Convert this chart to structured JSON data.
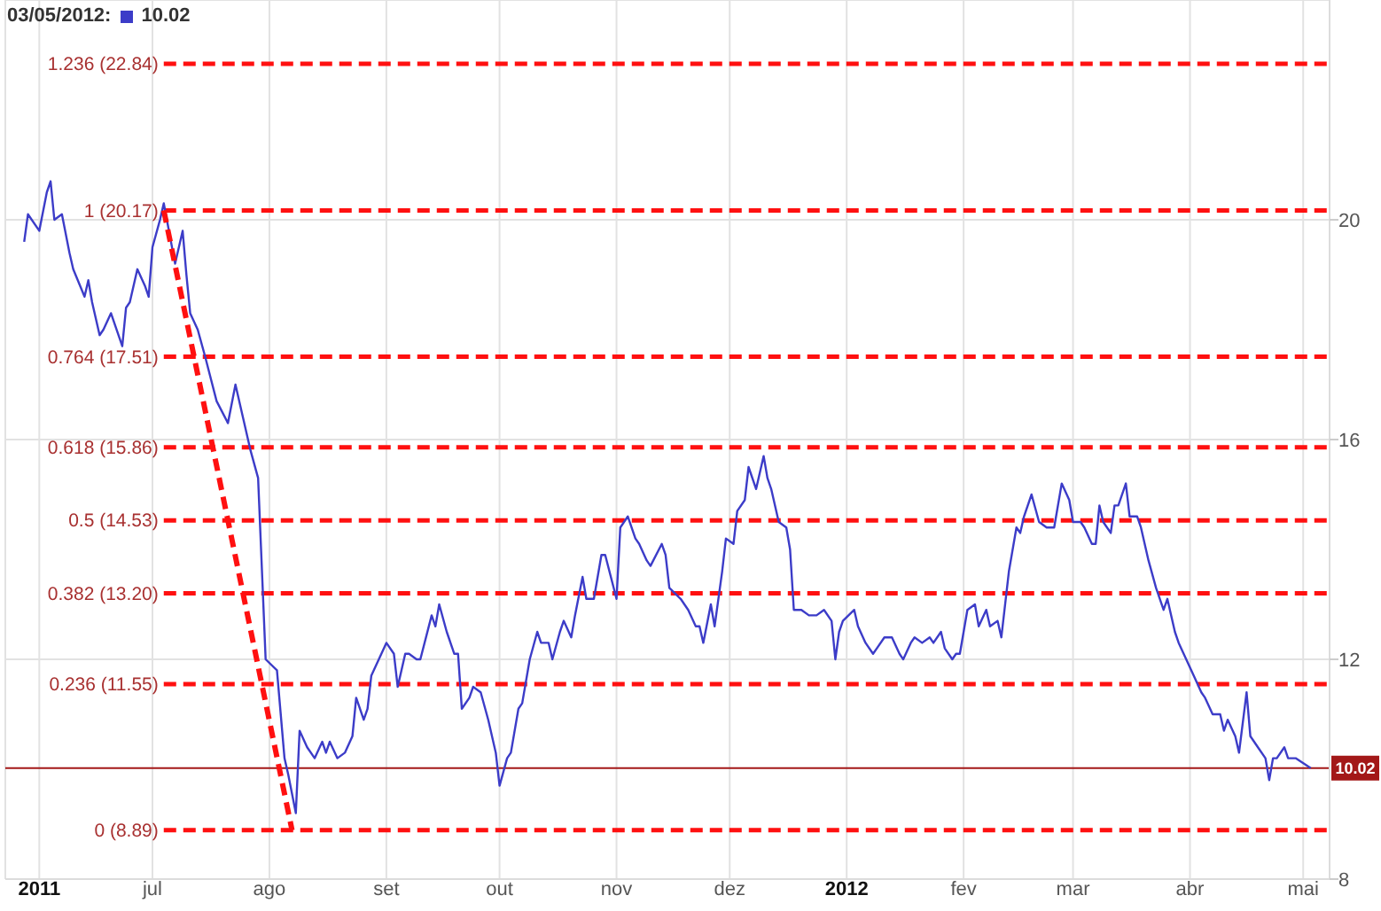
{
  "chart_data": {
    "type": "line",
    "title": "03/05/2012:",
    "annotations": [
      "10.02"
    ],
    "x": [
      "2011-05-28",
      "2011-05-29",
      "2011-06-01",
      "2011-06-03",
      "2011-06-04",
      "2011-06-05",
      "2011-06-07",
      "2011-06-09",
      "2011-06-10",
      "2011-06-13",
      "2011-06-14",
      "2011-06-15",
      "2011-06-17",
      "2011-06-18",
      "2011-06-20",
      "2011-06-23",
      "2011-06-24",
      "2011-06-25",
      "2011-06-27",
      "2011-06-29",
      "2011-06-30",
      "2011-07-01",
      "2011-07-03",
      "2011-07-04",
      "2011-07-07",
      "2011-07-09",
      "2011-07-10",
      "2011-07-11",
      "2011-07-13",
      "2011-07-15",
      "2011-07-18",
      "2011-07-21",
      "2011-07-23",
      "2011-07-25",
      "2011-07-27",
      "2011-07-29",
      "2011-07-31",
      "2011-08-03",
      "2011-08-05",
      "2011-08-06",
      "2011-08-08",
      "2011-08-09",
      "2011-08-11",
      "2011-08-13",
      "2011-08-15",
      "2011-08-16",
      "2011-08-17",
      "2011-08-19",
      "2011-08-21",
      "2011-08-23",
      "2011-08-24",
      "2011-08-26",
      "2011-08-27",
      "2011-08-28",
      "2011-08-30",
      "2011-09-01",
      "2011-09-03",
      "2011-09-04",
      "2011-09-06",
      "2011-09-07",
      "2011-09-09",
      "2011-09-10",
      "2011-09-13",
      "2011-09-14",
      "2011-09-15",
      "2011-09-17",
      "2011-09-19",
      "2011-09-20",
      "2011-09-21",
      "2011-09-23",
      "2011-09-24",
      "2011-09-26",
      "2011-09-28",
      "2011-09-30",
      "2011-10-01",
      "2011-10-03",
      "2011-10-04",
      "2011-10-06",
      "2011-10-07",
      "2011-10-09",
      "2011-10-11",
      "2011-10-12",
      "2011-10-14",
      "2011-10-15",
      "2011-10-17",
      "2011-10-18",
      "2011-10-20",
      "2011-10-21",
      "2011-10-23",
      "2011-10-24",
      "2011-10-26",
      "2011-10-28",
      "2011-10-29",
      "2011-11-01",
      "2011-11-02",
      "2011-11-04",
      "2011-11-06",
      "2011-11-07",
      "2011-11-09",
      "2011-11-10",
      "2011-11-13",
      "2011-11-14",
      "2011-11-15",
      "2011-11-18",
      "2011-11-20",
      "2011-11-22",
      "2011-11-23",
      "2011-11-24",
      "2011-11-26",
      "2011-11-27",
      "2011-11-29",
      "2011-11-30",
      "2011-12-02",
      "2011-12-03",
      "2011-12-05",
      "2011-12-06",
      "2011-12-08",
      "2011-12-10",
      "2011-12-11",
      "2011-12-12",
      "2011-12-14",
      "2011-12-16",
      "2011-12-17",
      "2011-12-18",
      "2011-12-20",
      "2011-12-22",
      "2011-12-24",
      "2011-12-26",
      "2011-12-28",
      "2011-12-29",
      "2011-12-30",
      "2011-12-31",
      "2012-01-03",
      "2012-01-04",
      "2012-01-06",
      "2012-01-08",
      "2012-01-09",
      "2012-01-11",
      "2012-01-13",
      "2012-01-15",
      "2012-01-16",
      "2012-01-18",
      "2012-01-19",
      "2012-01-21",
      "2012-01-23",
      "2012-01-24",
      "2012-01-26",
      "2012-01-27",
      "2012-01-29",
      "2012-01-30",
      "2012-01-31",
      "2012-02-02",
      "2012-02-04",
      "2012-02-05",
      "2012-02-07",
      "2012-02-08",
      "2012-02-10",
      "2012-02-11",
      "2012-02-13",
      "2012-02-15",
      "2012-02-16",
      "2012-02-17",
      "2012-02-19",
      "2012-02-21",
      "2012-02-23",
      "2012-02-25",
      "2012-02-27",
      "2012-02-29",
      "2012-03-01",
      "2012-03-03",
      "2012-03-04",
      "2012-03-06",
      "2012-03-07",
      "2012-03-08",
      "2012-03-09",
      "2012-03-11",
      "2012-03-12",
      "2012-03-13",
      "2012-03-15",
      "2012-03-16",
      "2012-03-18",
      "2012-03-19",
      "2012-03-21",
      "2012-03-23",
      "2012-03-25",
      "2012-03-26",
      "2012-03-28",
      "2012-03-29",
      "2012-03-31",
      "2012-04-02",
      "2012-04-04",
      "2012-04-05",
      "2012-04-07",
      "2012-04-09",
      "2012-04-10",
      "2012-04-11",
      "2012-04-13",
      "2012-04-14",
      "2012-04-16",
      "2012-04-17",
      "2012-04-19",
      "2012-04-21",
      "2012-04-22",
      "2012-04-23",
      "2012-04-24",
      "2012-04-26",
      "2012-04-27",
      "2012-04-29",
      "2012-05-03"
    ],
    "series": [
      {
        "color": "#3c3cc8",
        "values": [
          19.6,
          20.1,
          19.8,
          20.5,
          20.7,
          20.0,
          20.1,
          19.4,
          19.1,
          18.6,
          18.9,
          18.5,
          17.9,
          18.0,
          18.3,
          17.7,
          18.4,
          18.5,
          19.1,
          18.8,
          18.6,
          19.5,
          20.0,
          20.3,
          19.2,
          19.8,
          19.0,
          18.3,
          18.0,
          17.5,
          16.7,
          16.3,
          17.0,
          16.4,
          15.8,
          15.3,
          12.0,
          11.8,
          10.2,
          9.9,
          9.2,
          10.7,
          10.4,
          10.2,
          10.5,
          10.3,
          10.5,
          10.2,
          10.3,
          10.6,
          11.3,
          10.9,
          11.1,
          11.7,
          12.0,
          12.3,
          12.1,
          11.5,
          12.1,
          12.1,
          12.0,
          12.0,
          12.8,
          12.6,
          13.0,
          12.5,
          12.1,
          12.1,
          11.1,
          11.3,
          11.5,
          11.4,
          10.9,
          10.3,
          9.7,
          10.2,
          10.3,
          11.1,
          11.2,
          12.0,
          12.5,
          12.3,
          12.3,
          12.0,
          12.5,
          12.7,
          12.4,
          12.8,
          13.5,
          13.1,
          13.1,
          13.9,
          13.9,
          13.1,
          14.4,
          14.6,
          14.2,
          14.1,
          13.8,
          13.7,
          14.1,
          13.9,
          13.3,
          13.1,
          12.9,
          12.6,
          12.6,
          12.3,
          13.0,
          12.6,
          13.6,
          14.2,
          14.1,
          14.7,
          14.9,
          15.5,
          15.1,
          15.7,
          15.3,
          15.1,
          14.5,
          14.4,
          14.0,
          12.9,
          12.9,
          12.8,
          12.8,
          12.9,
          12.7,
          12.0,
          12.5,
          12.7,
          12.9,
          12.6,
          12.3,
          12.1,
          12.2,
          12.4,
          12.4,
          12.1,
          12.0,
          12.3,
          12.4,
          12.3,
          12.4,
          12.3,
          12.5,
          12.2,
          12.0,
          12.1,
          12.1,
          12.9,
          13.0,
          12.6,
          12.9,
          12.6,
          12.7,
          12.4,
          13.6,
          14.4,
          14.3,
          14.6,
          15.0,
          14.5,
          14.4,
          14.4,
          15.2,
          14.9,
          14.5,
          14.5,
          14.4,
          14.1,
          14.1,
          14.8,
          14.5,
          14.3,
          14.8,
          14.8,
          15.2,
          14.6,
          14.6,
          14.4,
          13.8,
          13.3,
          12.9,
          13.1,
          12.5,
          12.3,
          12.0,
          11.7,
          11.4,
          11.3,
          11.0,
          11.0,
          10.7,
          10.9,
          10.6,
          10.3,
          11.4,
          10.6,
          10.4,
          10.2,
          9.8,
          10.2,
          10.2,
          10.4,
          10.2,
          10.2,
          10.02
        ]
      },
      {
        "type": "line",
        "x": [
          "2011-07-04",
          "2011-08-07"
        ],
        "values": [
          20.17,
          8.89
        ],
        "color": "#ff1010",
        "line_style": "dashed"
      }
    ],
    "xlim": [
      "2011-05-23",
      "2012-05-08"
    ],
    "xticks": [
      {
        "value": "2011-06-01",
        "label": "2011"
      },
      {
        "value": "2011-07-01",
        "label": "jul"
      },
      {
        "value": "2011-08-01",
        "label": "ago"
      },
      {
        "value": "2011-09-01",
        "label": "set"
      },
      {
        "value": "2011-10-01",
        "label": "out"
      },
      {
        "value": "2011-11-01",
        "label": "nov"
      },
      {
        "value": "2011-12-01",
        "label": "dez"
      },
      {
        "value": "2012-01-01",
        "label": "2012"
      },
      {
        "value": "2012-02-01",
        "label": "fev"
      },
      {
        "value": "2012-03-01",
        "label": "mar"
      },
      {
        "value": "2012-04-01",
        "label": "abr"
      },
      {
        "value": "2012-05-01",
        "label": "mai"
      }
    ],
    "ylim": [
      8,
      24
    ],
    "yticks": [
      8,
      12,
      16,
      20
    ],
    "grid": true,
    "ref_lines": [
      {
        "axis": "y",
        "value": 22.84,
        "label": "1.236 (22.84)",
        "color": "#ff1010",
        "line_style": "dashed"
      },
      {
        "axis": "y",
        "value": 20.17,
        "label": "1 (20.17)",
        "color": "#ff1010",
        "line_style": "dashed"
      },
      {
        "axis": "y",
        "value": 17.51,
        "label": "0.764 (17.51)",
        "color": "#ff1010",
        "line_style": "dashed"
      },
      {
        "axis": "y",
        "value": 15.86,
        "label": "0.618 (15.86)",
        "color": "#ff1010",
        "line_style": "dashed"
      },
      {
        "axis": "y",
        "value": 14.53,
        "label": "0.5 (14.53)",
        "color": "#ff1010",
        "line_style": "dashed"
      },
      {
        "axis": "y",
        "value": 13.2,
        "label": "0.382 (13.20)",
        "color": "#ff1010",
        "line_style": "dashed"
      },
      {
        "axis": "y",
        "value": 11.55,
        "label": "0.236 (11.55)",
        "color": "#ff1010",
        "line_style": "dashed"
      },
      {
        "axis": "y",
        "value": 8.89,
        "label": "0 (8.89)",
        "color": "#ff1010",
        "line_style": "dashed"
      },
      {
        "axis": "y",
        "value": 10.02,
        "label": "10.02",
        "color": "#a31818",
        "line_style": "solid"
      }
    ]
  }
}
